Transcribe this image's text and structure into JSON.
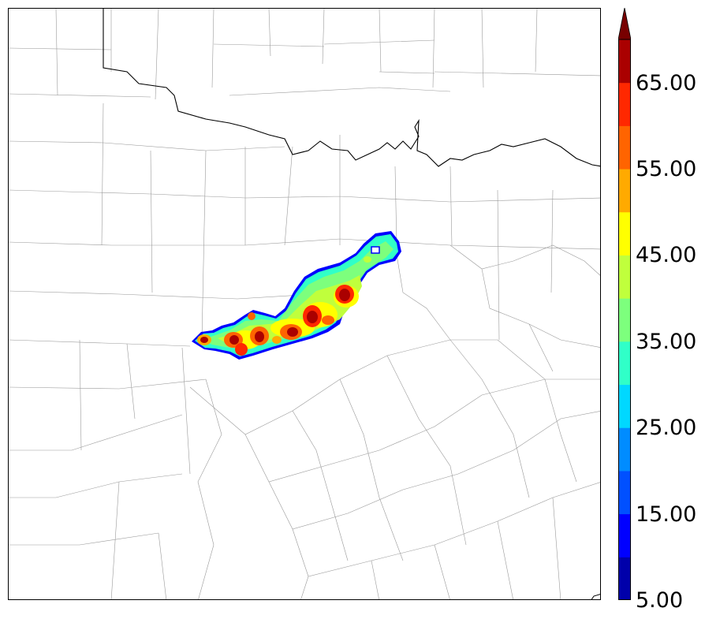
{
  "colorbar": {
    "tick_labels": [
      "5.00",
      "15.00",
      "25.00",
      "35.00",
      "45.00",
      "55.00",
      "65.00"
    ],
    "ticks": [
      5,
      15,
      25,
      35,
      45,
      55,
      65
    ],
    "min": 5,
    "max": 70,
    "extend": "max",
    "level_colors": [
      "#0000aa",
      "#0000ff",
      "#0050ff",
      "#008cff",
      "#00d8ff",
      "#30ffc8",
      "#7dff7d",
      "#c0ff3c",
      "#ffff00",
      "#ffaa00",
      "#ff6400",
      "#ff2800",
      "#aa0000"
    ],
    "extend_color": "#780000"
  },
  "map": {
    "features": [
      "state boundary",
      "county boundaries",
      "radar reflectivity contours"
    ]
  }
}
